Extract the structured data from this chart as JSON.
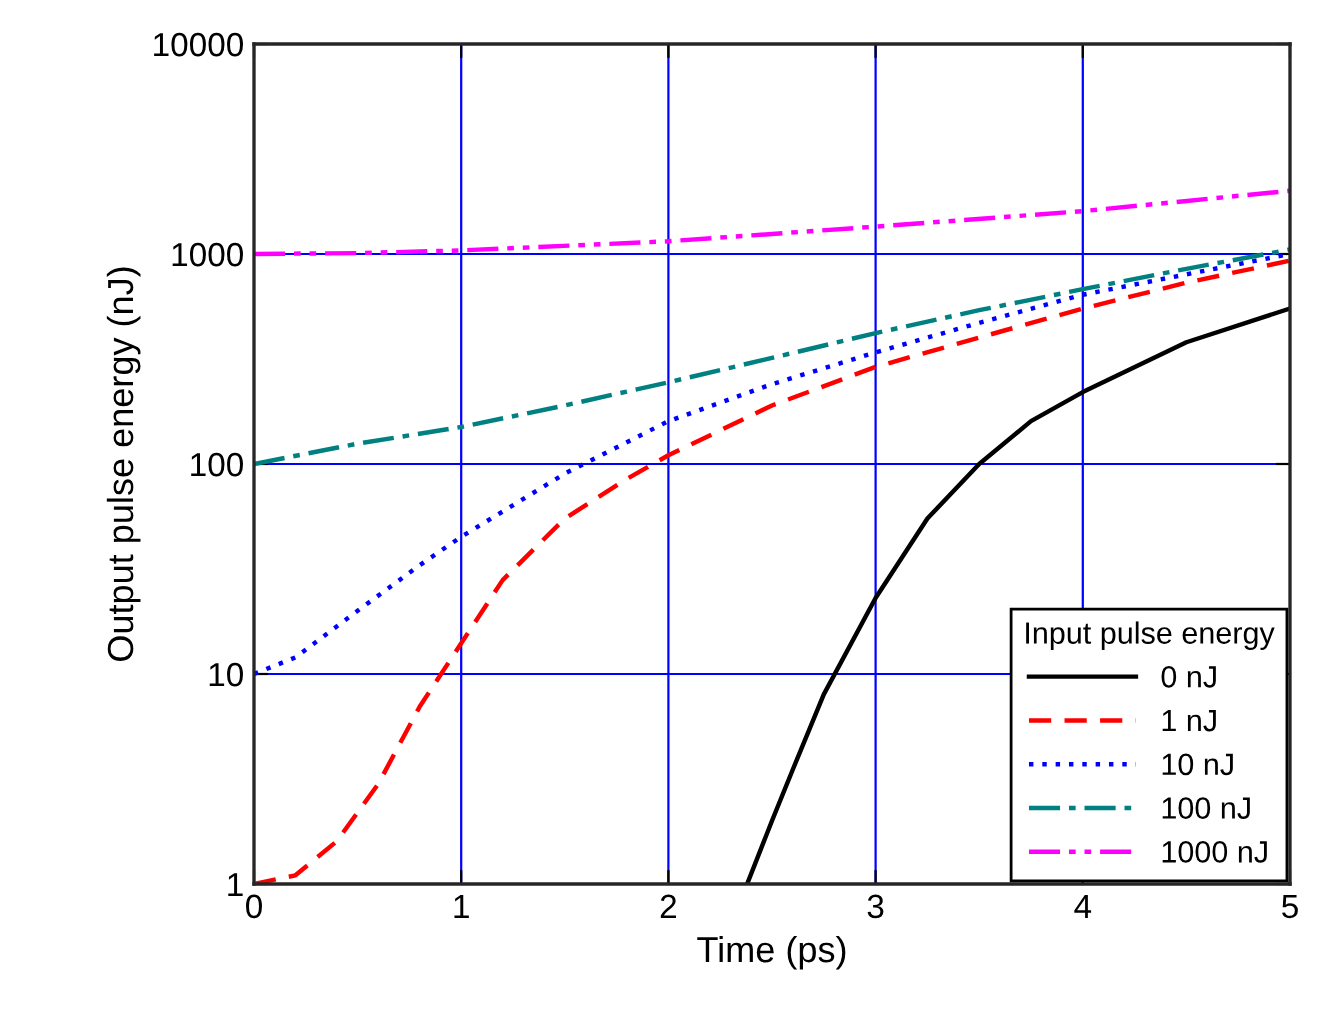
{
  "chart_data": {
    "type": "line",
    "xlabel": "Time (ps)",
    "ylabel": "Output pulse energy (nJ)",
    "legend_title": "Input pulse energy",
    "legend": "bottom right",
    "log": "y",
    "grid": true,
    "xlim": [
      0,
      5
    ],
    "xticks": [
      0,
      1,
      2,
      3,
      4,
      5
    ],
    "ylim": [
      1,
      10000
    ],
    "yticks": [
      1,
      10,
      100,
      1000,
      10000
    ],
    "series": [
      {
        "name": "0 nJ",
        "color": "#000000",
        "line_style": "solid",
        "x": [
          2.38,
          2.5,
          2.6,
          2.75,
          3,
          3.25,
          3.5,
          3.75,
          4,
          4.5,
          5
        ],
        "values": [
          1,
          2,
          3.5,
          8,
          23,
          55,
          100,
          160,
          220,
          380,
          550
        ]
      },
      {
        "name": "1 nJ",
        "color": "#ff0000",
        "line_style": "dashed",
        "x": [
          0,
          0.2,
          0.4,
          0.6,
          0.8,
          1,
          1.2,
          1.5,
          1.8,
          2,
          2.5,
          3,
          3.5,
          4,
          4.5,
          5
        ],
        "values": [
          1,
          1.1,
          1.6,
          3,
          7,
          14,
          28,
          55,
          85,
          110,
          190,
          290,
          400,
          550,
          730,
          930
        ]
      },
      {
        "name": "10 nJ",
        "color": "#0000ff",
        "line_style": "dotted",
        "x": [
          0,
          0.2,
          0.5,
          0.8,
          1,
          1.5,
          2,
          2.5,
          3,
          3.5,
          4,
          4.5,
          5
        ],
        "values": [
          10,
          12,
          20,
          33,
          45,
          90,
          160,
          240,
          340,
          470,
          640,
          800,
          1000
        ]
      },
      {
        "name": "100 nJ",
        "color": "#008080",
        "line_style": "dashdot",
        "x": [
          0,
          0.5,
          1,
          1.5,
          2,
          2.5,
          3,
          3.5,
          4,
          4.5,
          5
        ],
        "values": [
          100,
          125,
          150,
          190,
          245,
          320,
          420,
          540,
          680,
          850,
          1050
        ]
      },
      {
        "name": "1000 nJ",
        "color": "#ff00ff",
        "line_style": "dashdotdot",
        "x": [
          0,
          0.5,
          1,
          2,
          3,
          4,
          5
        ],
        "values": [
          1000,
          1010,
          1040,
          1150,
          1350,
          1600,
          2000
        ]
      }
    ]
  }
}
